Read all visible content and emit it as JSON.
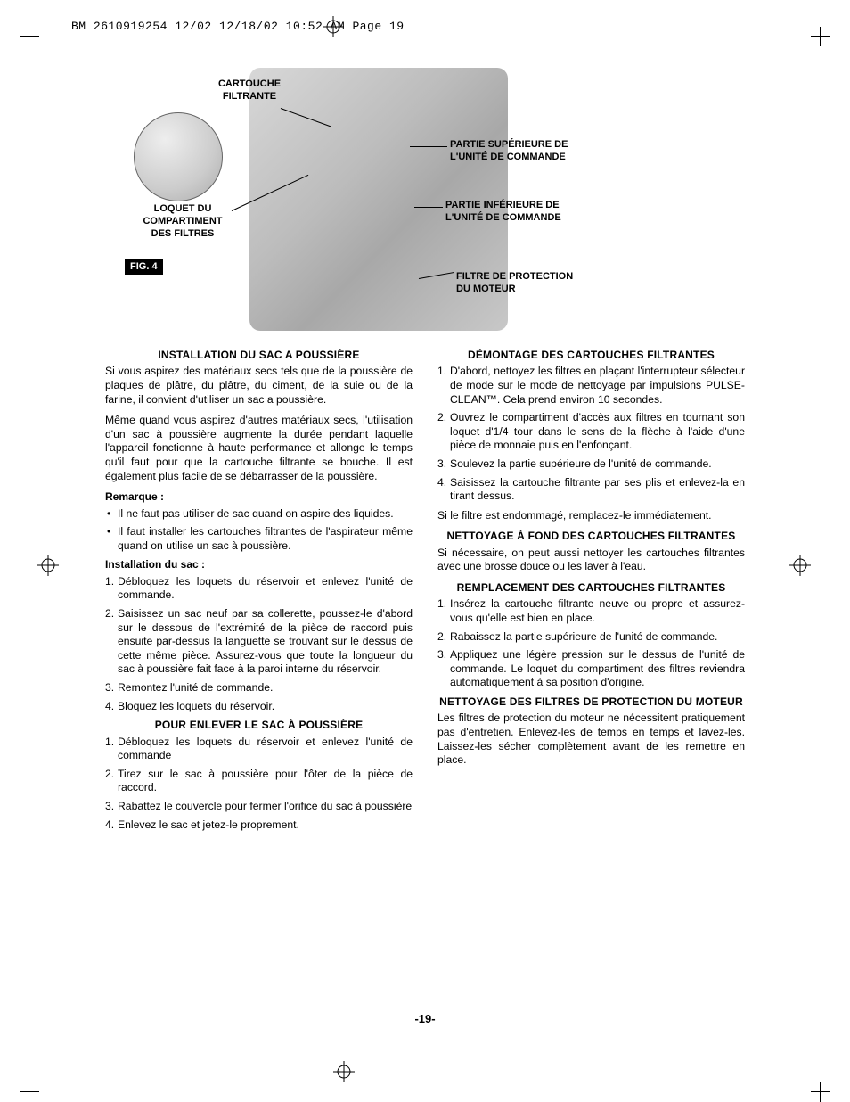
{
  "header": "BM 2610919254 12/02  12/18/02  10:52 AM  Page 19",
  "page_number": "-19-",
  "fig_badge": "FIG. 4",
  "diagram": {
    "labels": {
      "cartouche": "CARTOUCHE\nFILTRANTE",
      "loquet": "LOQUET DU\nCOMPARTIMENT\nDES FILTRES",
      "partie_sup": "PARTIE SUPÉRIEURE DE\nL'UNITÉ DE COMMANDE",
      "partie_inf": "PARTIE INFÉRIEURE DE\nL'UNITÉ DE COMMANDE",
      "filtre_prot": "FILTRE DE PROTECTION\nDU MOTEUR"
    }
  },
  "left": {
    "title1": "INSTALLATION DU SAC A POUSSIÈRE",
    "p1": "Si vous aspirez des matériaux secs tels que de la poussière de plaques de plâtre, du plâtre, du ciment, de la suie ou de la farine, il convient d'utiliser un sac a poussière.",
    "p2": "Même quand vous aspirez d'autres matériaux secs, l'utilisation d'un sac à poussière augmente la durée pendant laquelle l'appareil fonctionne à haute performance et allonge le temps qu'il faut pour que la cartouche filtrante se bouche. Il est également plus facile de se débarrasser de la poussière.",
    "remarque": "Remarque :",
    "bullets": [
      "Il ne faut pas utiliser de sac quand on aspire des liquides.",
      "Il faut installer les cartouches filtrantes de l'aspirateur même quand on utilise un sac à poussière."
    ],
    "install_head": "Installation du sac :",
    "install_steps": [
      "Débloquez les loquets du réservoir et enlevez l'unité de commande.",
      "Saisissez un sac neuf par sa collerette, poussez-le d'abord sur le dessous de l'extrémité de la pièce de raccord puis ensuite par-dessus la languette se trouvant sur le dessus de cette même pièce. Assurez-vous que toute la longueur du sac à poussière fait face à la paroi interne du réservoir.",
      "Remontez l'unité de commande.",
      "Bloquez les loquets du réservoir."
    ],
    "title2": "POUR ENLEVER LE SAC À POUSSIÈRE",
    "remove_steps": [
      "Débloquez les loquets du réservoir et enlevez l'unité de commande",
      "Tirez sur le sac à poussière pour l'ôter de la pièce de raccord.",
      "Rabattez le couvercle pour fermer l'orifice du sac à poussière",
      "Enlevez le sac et jetez-le proprement."
    ]
  },
  "right": {
    "title1": "DÉMONTAGE DES CARTOUCHES FILTRANTES",
    "steps1": [
      "D'abord, nettoyez les filtres en plaçant l'interrupteur sélecteur de mode sur le mode de nettoyage par impulsions PULSE-CLEAN™. Cela prend environ 10 secondes.",
      "Ouvrez le compartiment d'accès aux filtres en tournant son loquet d'1/4 tour dans le sens de la flèche à l'aide d'une pièce de monnaie puis en l'enfonçant.",
      "Soulevez la partie supérieure de l'unité de commande.",
      "Saisissez la cartouche filtrante par ses plis et enlevez-la en tirant dessus."
    ],
    "p_after1": "Si le filtre est endommagé, remplacez-le immédiatement.",
    "title2": "NETTOYAGE À FOND DES CARTOUCHES FILTRANTES",
    "p2": "Si nécessaire, on peut aussi nettoyer les cartouches filtrantes avec une brosse douce ou les laver à l'eau.",
    "title3": "REMPLACEMENT DES CARTOUCHES FILTRANTES",
    "steps3": [
      "Insérez la cartouche filtrante neuve ou propre et assurez-vous qu'elle est bien en place.",
      "Rabaissez la partie supérieure de l'unité de commande.",
      "Appliquez une légère pression sur le dessus de l'unité de commande. Le loquet du compartiment des filtres reviendra automatiquement à sa position d'origine."
    ],
    "title4": "NETTOYAGE DES FILTRES DE PROTECTION DU MOTEUR",
    "p4": "Les filtres de protection du moteur ne nécessitent pratiquement pas d'entretien. Enlevez-les de temps en temps et lavez-les. Laissez-les sécher complètement avant de les remettre en place."
  }
}
